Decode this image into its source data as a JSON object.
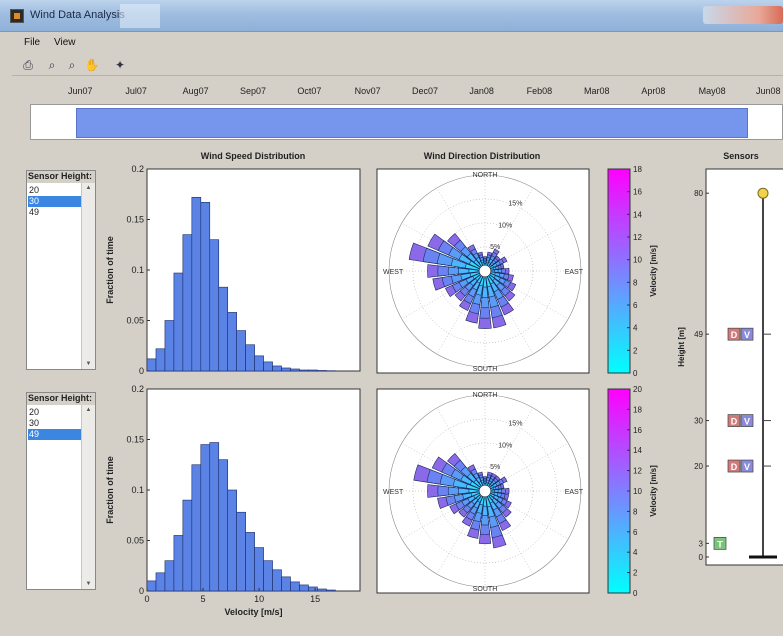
{
  "window": {
    "title": "Wind Data Analysis"
  },
  "menu": {
    "items": [
      "File",
      "View"
    ]
  },
  "toolbar": {
    "icons": [
      "print-icon",
      "zoom-in-icon",
      "zoom-out-icon",
      "pan-icon",
      "data-cursor-icon"
    ]
  },
  "timeline": {
    "labels": [
      "Jun07",
      "Jul07",
      "Aug07",
      "Sep07",
      "Oct07",
      "Nov07",
      "Dec07",
      "Jan08",
      "Feb08",
      "Mar08",
      "Apr08",
      "May08",
      "Jun08"
    ],
    "selected_range": [
      0.06,
      0.955
    ],
    "range_color": "#7596ec"
  },
  "sensor_lists": [
    {
      "title": "Sensor Height:",
      "items": [
        "20",
        "30",
        "49"
      ],
      "selected_index": 1
    },
    {
      "title": "Sensor Height:",
      "items": [
        "20",
        "30",
        "49"
      ],
      "selected_index": 2
    }
  ],
  "headers": {
    "speed": "Wind Speed Distribution",
    "direction": "Wind Direction Distribution",
    "sensors": "Sensors"
  },
  "chart_data": [
    {
      "type": "bar",
      "title": "Wind Speed Distribution",
      "ylabel": "Fraction of time",
      "xlabel": "",
      "ylim": [
        0,
        0.2
      ],
      "xlim": [
        0,
        19
      ],
      "yticks": [
        "0",
        "0.05",
        "0.1",
        "0.15",
        "0.2"
      ],
      "bin_width": 0.8,
      "values": [
        0.012,
        0.022,
        0.05,
        0.097,
        0.135,
        0.172,
        0.167,
        0.13,
        0.083,
        0.058,
        0.04,
        0.026,
        0.015,
        0.009,
        0.005,
        0.003,
        0.002,
        0.001,
        0.001,
        0.0005,
        0.0003
      ],
      "color": "#5b83e6"
    },
    {
      "type": "bar",
      "title": "",
      "ylabel": "Fraction of time",
      "xlabel": "Velocity [m/s]",
      "ylim": [
        0,
        0.2
      ],
      "xlim": [
        0,
        19
      ],
      "yticks": [
        "0",
        "0.05",
        "0.1",
        "0.15",
        "0.2"
      ],
      "xticks": [
        {
          "value": 0,
          "label": "0"
        },
        {
          "value": 5,
          "label": "5"
        },
        {
          "value": 10,
          "label": "10"
        },
        {
          "value": 15,
          "label": "15"
        }
      ],
      "bin_width": 0.8,
      "values": [
        0.01,
        0.018,
        0.03,
        0.055,
        0.09,
        0.125,
        0.145,
        0.147,
        0.13,
        0.1,
        0.078,
        0.058,
        0.043,
        0.03,
        0.021,
        0.014,
        0.009,
        0.006,
        0.004,
        0.002,
        0.001
      ],
      "color": "#5b83e6"
    },
    {
      "type": "rose",
      "labels": {
        "north": "NORTH",
        "south": "SOUTH",
        "east": "EAST",
        "west": "WEST"
      },
      "ring_labels": [
        "5%",
        "10%",
        "15%"
      ],
      "ring_values": [
        5,
        10,
        15
      ],
      "rmax": 20,
      "sectors": [
        3,
        4,
        5,
        4,
        5,
        4,
        5,
        6,
        7,
        8,
        10,
        12,
        12,
        11,
        9,
        8,
        9,
        11,
        12,
        16,
        13,
        10,
        6,
        4
      ],
      "levels": 5
    },
    {
      "type": "rose",
      "labels": {
        "north": "NORTH",
        "south": "SOUTH",
        "east": "EAST",
        "west": "WEST"
      },
      "ring_labels": [
        "5%",
        "10%",
        "15%"
      ],
      "ring_values": [
        5,
        10,
        15
      ],
      "rmax": 20,
      "sectors": [
        3,
        4,
        4,
        4,
        5,
        4,
        5,
        5,
        6,
        7,
        9,
        12,
        11,
        10,
        8,
        7,
        8,
        10,
        12,
        15,
        12,
        10,
        6,
        4
      ],
      "levels": 5
    },
    {
      "type": "heatmap",
      "subtype": "colorbar",
      "label": "Velocity [m/s]",
      "range": [
        0,
        18
      ],
      "ticks": [
        "0",
        "2",
        "4",
        "6",
        "8",
        "10",
        "12",
        "14",
        "16",
        "18"
      ],
      "colors": [
        "#00ffff",
        "#ff00ff"
      ]
    },
    {
      "type": "heatmap",
      "subtype": "colorbar",
      "label": "Velocity [m/s]",
      "range": [
        0,
        20
      ],
      "ticks": [
        "0",
        "2",
        "4",
        "6",
        "8",
        "10",
        "12",
        "14",
        "16",
        "18",
        "20"
      ],
      "colors": [
        "#00ffff",
        "#ff00ff"
      ]
    },
    {
      "type": "scatter",
      "title": "Sensors",
      "ylabel": "Height [m]",
      "ylim": [
        0,
        84
      ],
      "yticks": [
        {
          "value": 0,
          "label": "0"
        },
        {
          "value": 3,
          "label": "3"
        },
        {
          "value": 20,
          "label": "20"
        },
        {
          "value": 30,
          "label": "30"
        },
        {
          "value": 49,
          "label": "49"
        },
        {
          "value": 80,
          "label": "80"
        }
      ],
      "mast_top": 80,
      "sensors": [
        {
          "height": 49,
          "badges": [
            "D",
            "V"
          ]
        },
        {
          "height": 30,
          "badges": [
            "D",
            "V"
          ]
        },
        {
          "height": 20,
          "badges": [
            "D",
            "V"
          ]
        },
        {
          "height": 3,
          "badges": [
            "T"
          ]
        }
      ],
      "badge_colors": {
        "D": "#d07a7a",
        "V": "#8a8ad8",
        "T": "#7cc47c"
      }
    }
  ]
}
